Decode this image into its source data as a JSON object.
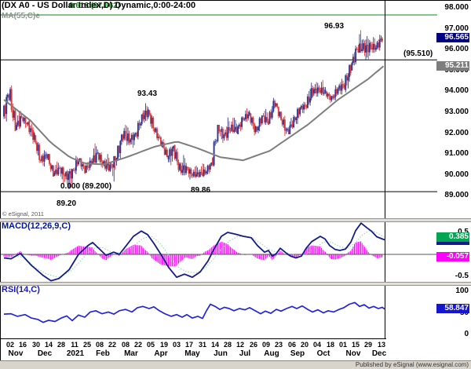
{
  "header": {
    "title": "(DX A0 - US Dollar Index,D) Dynamic,0:00-24:00",
    "fib_upper_label": "0.618 (97.662)",
    "ma_label": "MA(55,C)e"
  },
  "price_panel": {
    "axis_labels": [
      "98.000",
      "97.000",
      "96.000",
      "95.000",
      "94.000",
      "93.000",
      "92.000",
      "91.000",
      "90.000",
      "89.000"
    ],
    "annotations": {
      "swing_high_nov": "96.93",
      "swing_high_mar": "93.43",
      "swing_low_may": "89.86",
      "fib_zero_label": "0.000 (89.200)",
      "fib_zero_value": "89.20",
      "projection_label": "(95.510)",
      "copyright": "© eSignal, 2011"
    },
    "badges": {
      "last_price": "96.565",
      "ma_value": "95.211"
    }
  },
  "macd_panel": {
    "label": "MACD(12,26,9,C)",
    "axis_high": "0.5",
    "axis_low": "-0.5",
    "badges": {
      "signal": "0.385",
      "histogram": "-0.057"
    }
  },
  "rsi_panel": {
    "label": "RSI(14,C)",
    "axis_high": "100",
    "axis_mid": "50",
    "axis_low": "0",
    "badge": "58.847"
  },
  "x_axis": {
    "ticks": [
      "02",
      "16",
      "30",
      "14",
      "28",
      "11",
      "25",
      "08",
      "22",
      "08",
      "22",
      "05",
      "19",
      "03",
      "17",
      "31",
      "14",
      "28",
      "12",
      "26",
      "09",
      "23",
      "06",
      "20",
      "04",
      "18",
      "01",
      "15",
      "29",
      "13"
    ],
    "months": [
      {
        "label": "Nov",
        "x": 20
      },
      {
        "label": "Dec",
        "x": 57
      },
      {
        "label": "2021",
        "x": 96
      },
      {
        "label": "Feb",
        "x": 131
      },
      {
        "label": "Mar",
        "x": 167
      },
      {
        "label": "Apr",
        "x": 205
      },
      {
        "label": "May",
        "x": 245
      },
      {
        "label": "Jun",
        "x": 281
      },
      {
        "label": "Jul",
        "x": 312
      },
      {
        "label": "Aug",
        "x": 346
      },
      {
        "label": "Sep",
        "x": 379
      },
      {
        "label": "Oct",
        "x": 412
      },
      {
        "label": "Nov",
        "x": 450
      },
      {
        "label": "Dec",
        "x": 483
      }
    ]
  },
  "footer": {
    "publisher": "Published by eSignal (www.esignal.com)"
  },
  "colors": {
    "candle_up": "#2e3894",
    "candle_down": "#e03c3c",
    "ma_line": "#7e7e7e",
    "macd_line": "#141c8c",
    "signal_line": "#8fd0b0",
    "histogram": "#ff00ff",
    "rsi_line": "#2424dc",
    "fib_green": "#0c8a12",
    "level_black": "#000000",
    "badge_last": "#000080",
    "badge_ma": "#7e7e7e",
    "badge_signal": "#00a651",
    "badge_hist": "#ff00ff",
    "badge_rsi": "#1616cf"
  },
  "chart_data": {
    "type": "candlestick+indicators",
    "symbol": "DX A0 - US Dollar Index, Daily",
    "session": "Dynamic, 0:00-24:00",
    "price": {
      "ylim": [
        89,
        98
      ],
      "interval": "weekly_ohlc_rendered_as_daily",
      "start_label": "Nov 02 (2020)",
      "end_label": "Dec 13 (2021)",
      "weekly_ohlc": [
        [
          92.8,
          94.1,
          92.45,
          94.0
        ],
        [
          94.0,
          94.3,
          92.1,
          92.25
        ],
        [
          92.25,
          93.2,
          92.15,
          92.75
        ],
        [
          92.75,
          92.8,
          92.2,
          92.39
        ],
        [
          92.39,
          92.6,
          91.5,
          91.8
        ],
        [
          91.8,
          91.9,
          90.5,
          90.7
        ],
        [
          90.7,
          91.2,
          90.4,
          90.98
        ],
        [
          90.98,
          91.0,
          89.92,
          90.02
        ],
        [
          90.02,
          90.7,
          89.95,
          90.3
        ],
        [
          90.3,
          90.4,
          89.5,
          89.94
        ],
        [
          89.94,
          90.3,
          89.21,
          90.1
        ],
        [
          90.1,
          90.95,
          89.95,
          90.77
        ],
        [
          90.77,
          90.8,
          90.05,
          90.24
        ],
        [
          90.24,
          90.85,
          90.1,
          90.58
        ],
        [
          90.58,
          91.6,
          90.5,
          91.0
        ],
        [
          91.0,
          91.1,
          90.25,
          90.48
        ],
        [
          90.48,
          91.0,
          90.15,
          90.36
        ],
        [
          90.36,
          90.9,
          89.68,
          90.88
        ],
        [
          90.88,
          92.0,
          90.6,
          91.98
        ],
        [
          91.98,
          92.5,
          91.4,
          91.68
        ],
        [
          91.68,
          92.05,
          91.3,
          91.92
        ],
        [
          91.92,
          92.9,
          91.7,
          92.77
        ],
        [
          92.77,
          93.43,
          92.5,
          93.02
        ],
        [
          93.02,
          93.1,
          91.95,
          92.16
        ],
        [
          92.16,
          92.3,
          91.45,
          91.56
        ],
        [
          91.56,
          91.8,
          90.85,
          90.86
        ],
        [
          90.86,
          91.4,
          90.42,
          91.28
        ],
        [
          91.28,
          91.45,
          90.1,
          90.23
        ],
        [
          90.23,
          90.95,
          89.98,
          90.32
        ],
        [
          90.32,
          90.4,
          89.75,
          90.02
        ],
        [
          90.02,
          90.45,
          89.86,
          90.03
        ],
        [
          90.03,
          90.6,
          89.9,
          90.13
        ],
        [
          90.13,
          90.6,
          89.95,
          90.55
        ],
        [
          90.55,
          92.4,
          90.4,
          92.3
        ],
        [
          92.3,
          92.4,
          91.5,
          91.85
        ],
        [
          91.85,
          92.75,
          91.65,
          92.24
        ],
        [
          92.24,
          92.85,
          92.0,
          92.13
        ],
        [
          92.13,
          92.8,
          91.95,
          92.69
        ],
        [
          92.69,
          93.19,
          92.55,
          92.91
        ],
        [
          92.91,
          92.95,
          91.85,
          92.09
        ],
        [
          92.09,
          92.85,
          91.9,
          92.8
        ],
        [
          92.8,
          93.2,
          92.4,
          92.52
        ],
        [
          92.52,
          93.73,
          92.45,
          93.5
        ],
        [
          93.5,
          93.5,
          92.6,
          92.68
        ],
        [
          92.68,
          92.85,
          91.8,
          92.03
        ],
        [
          92.03,
          92.9,
          91.95,
          92.58
        ],
        [
          92.58,
          93.25,
          92.3,
          93.2
        ],
        [
          93.2,
          93.5,
          92.95,
          93.33
        ],
        [
          93.33,
          94.5,
          93.2,
          94.04
        ],
        [
          94.04,
          94.45,
          93.75,
          94.07
        ],
        [
          94.07,
          94.55,
          93.8,
          93.94
        ],
        [
          93.94,
          94.0,
          93.45,
          93.64
        ],
        [
          93.64,
          94.3,
          93.5,
          94.12
        ],
        [
          94.12,
          94.6,
          93.85,
          94.32
        ],
        [
          94.32,
          95.3,
          93.95,
          95.13
        ],
        [
          95.13,
          96.25,
          95.0,
          96.03
        ],
        [
          96.03,
          96.93,
          95.85,
          96.09
        ],
        [
          96.09,
          96.65,
          95.52,
          96.12
        ],
        [
          96.12,
          96.6,
          95.85,
          96.1
        ],
        [
          96.1,
          96.8,
          95.95,
          96.57
        ]
      ],
      "ma55_anchors_day_value": [
        [
          0,
          93.6
        ],
        [
          21,
          92.6
        ],
        [
          37,
          91.55
        ],
        [
          52,
          90.85
        ],
        [
          64,
          90.55
        ],
        [
          79,
          90.5
        ],
        [
          97,
          90.85
        ],
        [
          119,
          91.35
        ],
        [
          137,
          91.6
        ],
        [
          152,
          91.3
        ],
        [
          171,
          90.85
        ],
        [
          189,
          90.7
        ],
        [
          210,
          91.15
        ],
        [
          228,
          91.9
        ],
        [
          240,
          92.4
        ],
        [
          252,
          93.0
        ],
        [
          264,
          93.6
        ],
        [
          276,
          94.1
        ],
        [
          288,
          94.6
        ],
        [
          300,
          95.211
        ]
      ],
      "levels": [
        {
          "value": 97.662,
          "label": "0.618 (97.662)",
          "color_key": "fib_green"
        },
        {
          "value": 95.51,
          "label": "(95.510)",
          "color_key": "level_black"
        },
        {
          "value": 89.2,
          "label": "0.000 (89.200)",
          "color_key": "level_black"
        }
      ],
      "marked_points": [
        {
          "label": "96.93",
          "meaning": "swing high, late Nov 2021"
        },
        {
          "label": "93.43",
          "meaning": "swing high, late Mar 2021"
        },
        {
          "label": "89.86",
          "meaning": "swing low, late May 2021"
        },
        {
          "label": "89.20",
          "meaning": "fib 0.000 base, Jan 2021 low"
        }
      ],
      "last_close": 96.565,
      "ma55_last": 95.211
    },
    "macd": {
      "ylim": [
        -0.73,
        0.73
      ],
      "line_anchors_x_value": [
        [
          5,
          -0.08
        ],
        [
          14,
          -0.1
        ],
        [
          26,
          0.02
        ],
        [
          40,
          -0.25
        ],
        [
          55,
          -0.48
        ],
        [
          65,
          -0.6
        ],
        [
          75,
          -0.55
        ],
        [
          88,
          -0.35
        ],
        [
          100,
          0.0
        ],
        [
          112,
          0.2
        ],
        [
          118,
          0.27
        ],
        [
          128,
          0.1
        ],
        [
          135,
          -0.02
        ],
        [
          145,
          0.05
        ],
        [
          152,
          0.0
        ],
        [
          160,
          0.18
        ],
        [
          170,
          0.41
        ],
        [
          180,
          0.53
        ],
        [
          188,
          0.45
        ],
        [
          196,
          0.25
        ],
        [
          205,
          0.0
        ],
        [
          215,
          -0.3
        ],
        [
          225,
          -0.52
        ],
        [
          235,
          -0.45
        ],
        [
          245,
          -0.52
        ],
        [
          255,
          -0.4
        ],
        [
          265,
          -0.15
        ],
        [
          272,
          0.1
        ],
        [
          282,
          0.41
        ],
        [
          290,
          0.5
        ],
        [
          300,
          0.46
        ],
        [
          310,
          0.41
        ],
        [
          320,
          0.38
        ],
        [
          328,
          0.2
        ],
        [
          337,
          0.05
        ],
        [
          342,
          0.09
        ],
        [
          347,
          -0.04
        ],
        [
          352,
          0.02
        ],
        [
          357,
          0.14
        ],
        [
          364,
          0.04
        ],
        [
          370,
          -0.04
        ],
        [
          377,
          -0.08
        ],
        [
          384,
          -0.04
        ],
        [
          390,
          0.14
        ],
        [
          397,
          0.29
        ],
        [
          408,
          0.41
        ],
        [
          414,
          0.35
        ],
        [
          420,
          0.2
        ],
        [
          427,
          0.11
        ],
        [
          433,
          0.09
        ],
        [
          440,
          0.12
        ],
        [
          447,
          0.28
        ],
        [
          453,
          0.54
        ],
        [
          460,
          0.71
        ],
        [
          467,
          0.61
        ],
        [
          473,
          0.53
        ],
        [
          480,
          0.4
        ],
        [
          490,
          0.33
        ]
      ],
      "signal_anchors_x_value": [
        [
          5,
          -0.03
        ],
        [
          14,
          -0.04
        ],
        [
          30,
          -0.06
        ],
        [
          45,
          -0.3
        ],
        [
          60,
          -0.45
        ],
        [
          75,
          -0.52
        ],
        [
          90,
          -0.38
        ],
        [
          100,
          -0.2
        ],
        [
          110,
          0.0
        ],
        [
          120,
          0.14
        ],
        [
          130,
          0.16
        ],
        [
          140,
          0.07
        ],
        [
          150,
          0.03
        ],
        [
          160,
          0.06
        ],
        [
          172,
          0.22
        ],
        [
          184,
          0.38
        ],
        [
          194,
          0.4
        ],
        [
          204,
          0.25
        ],
        [
          214,
          0.0
        ],
        [
          226,
          -0.28
        ],
        [
          238,
          -0.4
        ],
        [
          250,
          -0.42
        ],
        [
          262,
          -0.3
        ],
        [
          272,
          -0.1
        ],
        [
          282,
          0.12
        ],
        [
          292,
          0.3
        ],
        [
          302,
          0.4
        ],
        [
          312,
          0.42
        ],
        [
          322,
          0.36
        ],
        [
          332,
          0.25
        ],
        [
          342,
          0.12
        ],
        [
          352,
          0.05
        ],
        [
          362,
          0.05
        ],
        [
          372,
          0.0
        ],
        [
          382,
          -0.03
        ],
        [
          392,
          0.02
        ],
        [
          402,
          0.15
        ],
        [
          412,
          0.28
        ],
        [
          422,
          0.28
        ],
        [
          432,
          0.18
        ],
        [
          442,
          0.14
        ],
        [
          452,
          0.25
        ],
        [
          462,
          0.45
        ],
        [
          472,
          0.55
        ],
        [
          482,
          0.47
        ],
        [
          490,
          0.385
        ]
      ],
      "last_values": {
        "macd": 0.33,
        "signal": 0.385,
        "histogram": -0.057
      }
    },
    "rsi": {
      "ylim": [
        0,
        100
      ],
      "anchors_x_value": [
        [
          5,
          47
        ],
        [
          14,
          48
        ],
        [
          22,
          42
        ],
        [
          32,
          46
        ],
        [
          40,
          38
        ],
        [
          48,
          35
        ],
        [
          55,
          28
        ],
        [
          62,
          33
        ],
        [
          70,
          30
        ],
        [
          78,
          38
        ],
        [
          85,
          43
        ],
        [
          92,
          32
        ],
        [
          100,
          45
        ],
        [
          108,
          40
        ],
        [
          115,
          52
        ],
        [
          122,
          55
        ],
        [
          130,
          48
        ],
        [
          138,
          52
        ],
        [
          145,
          47
        ],
        [
          152,
          55
        ],
        [
          160,
          58
        ],
        [
          168,
          52
        ],
        [
          175,
          62
        ],
        [
          182,
          65
        ],
        [
          190,
          60
        ],
        [
          196,
          64
        ],
        [
          203,
          55
        ],
        [
          210,
          48
        ],
        [
          218,
          42
        ],
        [
          225,
          46
        ],
        [
          232,
          40
        ],
        [
          238,
          46
        ],
        [
          245,
          38
        ],
        [
          252,
          42
        ],
        [
          258,
          37
        ],
        [
          263,
          55
        ],
        [
          268,
          70
        ],
        [
          274,
          65
        ],
        [
          280,
          58
        ],
        [
          286,
          63
        ],
        [
          292,
          60
        ],
        [
          298,
          55
        ],
        [
          305,
          60
        ],
        [
          312,
          57
        ],
        [
          318,
          62
        ],
        [
          325,
          55
        ],
        [
          332,
          48
        ],
        [
          338,
          54
        ],
        [
          345,
          49
        ],
        [
          352,
          58
        ],
        [
          358,
          54
        ],
        [
          365,
          60
        ],
        [
          372,
          65
        ],
        [
          378,
          60
        ],
        [
          385,
          66
        ],
        [
          392,
          58
        ],
        [
          398,
          52
        ],
        [
          405,
          57
        ],
        [
          412,
          50
        ],
        [
          418,
          55
        ],
        [
          425,
          52
        ],
        [
          432,
          58
        ],
        [
          438,
          62
        ],
        [
          445,
          70
        ],
        [
          452,
          74
        ],
        [
          458,
          65
        ],
        [
          464,
          69
        ],
        [
          470,
          61
        ],
        [
          476,
          65
        ],
        [
          482,
          60
        ],
        [
          487,
          63
        ],
        [
          490,
          58.8
        ]
      ],
      "last_value": 58.847
    }
  }
}
